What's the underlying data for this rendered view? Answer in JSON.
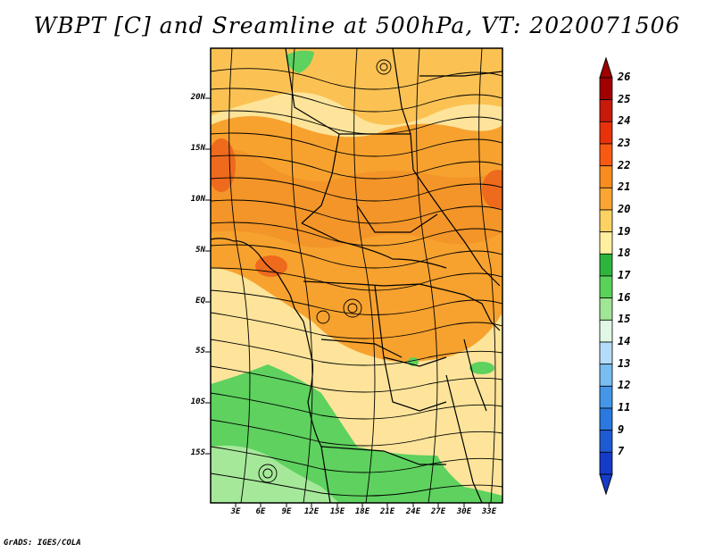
{
  "title": "WBPT [C] and Sreamline at 500hPa, VT: 2020071506",
  "footer": "GrADS: IGES/COLA",
  "map": {
    "lat_labels": [
      "20N",
      "15N",
      "10N",
      "5N",
      "EQ",
      "5S",
      "10S",
      "15S"
    ],
    "lon_labels": [
      "3E",
      "6E",
      "9E",
      "12E",
      "15E",
      "18E",
      "21E",
      "24E",
      "27E",
      "30E",
      "33E"
    ]
  },
  "colorbar": {
    "levels": [
      "26",
      "25",
      "24",
      "23",
      "22",
      "21",
      "20",
      "19",
      "18",
      "17",
      "16",
      "15",
      "14",
      "13",
      "12",
      "11",
      "9",
      "7"
    ],
    "colors": [
      "#a00000",
      "#c81a0a",
      "#e8320a",
      "#f85a14",
      "#f88c1e",
      "#faa534",
      "#fcd264",
      "#fff0a0",
      "#2eb43c",
      "#5ad25a",
      "#a0e696",
      "#e0f8e4",
      "#b4dcfa",
      "#78bef0",
      "#4496e8",
      "#2a78e0",
      "#1e5ad2",
      "#143cc8"
    ]
  },
  "palette": {
    "land": "#fde49a",
    "orange": "#f7a22e",
    "warm": "#fbc253",
    "hot": "#ee6a1c",
    "green": "#5ed15e",
    "lightgreen": "#a6e89a"
  }
}
